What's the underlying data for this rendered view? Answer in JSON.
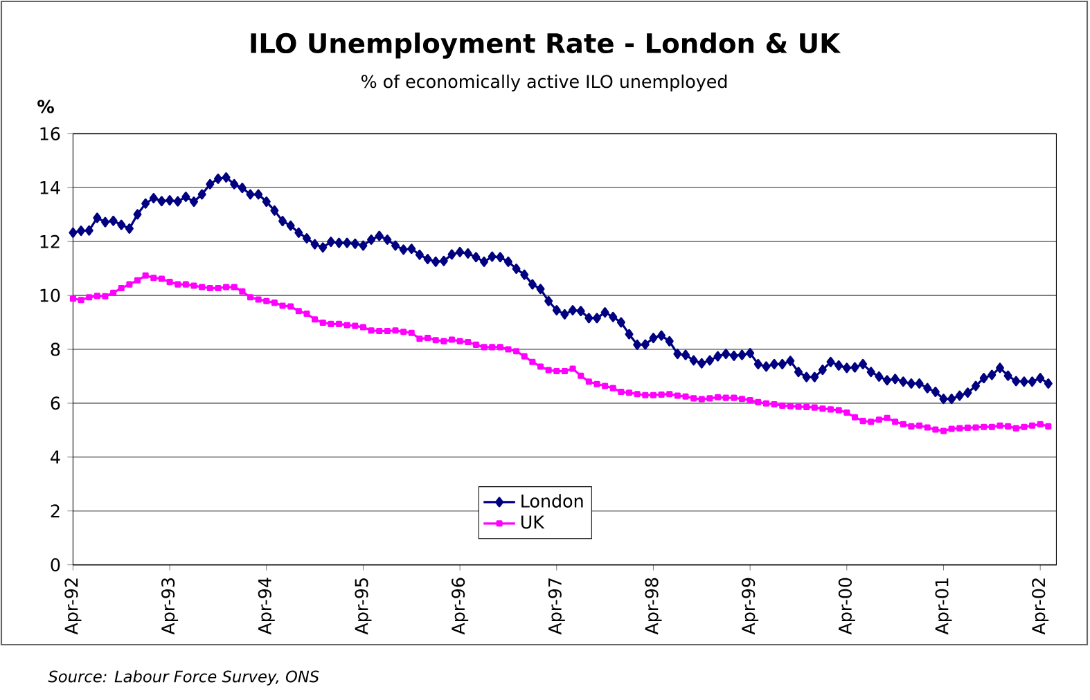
{
  "chart_data": {
    "type": "line",
    "title": "ILO Unemployment Rate - London & UK",
    "subtitle": "% of economically active ILO unemployed",
    "ylabel": "%",
    "annotations": [
      "Source: Labour Force Survey, ONS"
    ],
    "x": [
      "1992-04",
      "1992-05",
      "1992-06",
      "1992-07",
      "1992-08",
      "1992-09",
      "1992-10",
      "1992-11",
      "1992-12",
      "1993-01",
      "1993-02",
      "1993-03",
      "1993-04",
      "1993-05",
      "1993-06",
      "1993-07",
      "1993-08",
      "1993-09",
      "1993-10",
      "1993-11",
      "1993-12",
      "1994-01",
      "1994-02",
      "1994-03",
      "1994-04",
      "1994-05",
      "1994-06",
      "1994-07",
      "1994-08",
      "1994-09",
      "1994-10",
      "1994-11",
      "1994-12",
      "1995-01",
      "1995-02",
      "1995-03",
      "1995-04",
      "1995-05",
      "1995-06",
      "1995-07",
      "1995-08",
      "1995-09",
      "1995-10",
      "1995-11",
      "1995-12",
      "1996-01",
      "1996-02",
      "1996-03",
      "1996-04",
      "1996-05",
      "1996-06",
      "1996-07",
      "1996-08",
      "1996-09",
      "1996-10",
      "1996-11",
      "1996-12",
      "1997-01",
      "1997-02",
      "1997-03",
      "1997-04",
      "1997-05",
      "1997-06",
      "1997-07",
      "1997-08",
      "1997-09",
      "1997-10",
      "1997-11",
      "1997-12",
      "1998-01",
      "1998-02",
      "1998-03",
      "1998-04",
      "1998-05",
      "1998-06",
      "1998-07",
      "1998-08",
      "1998-09",
      "1998-10",
      "1998-11",
      "1998-12",
      "1999-01",
      "1999-02",
      "1999-03",
      "1999-04",
      "1999-05",
      "1999-06",
      "1999-07",
      "1999-08",
      "1999-09",
      "1999-10",
      "1999-11",
      "1999-12",
      "2000-01",
      "2000-02",
      "2000-03",
      "2000-04",
      "2000-05",
      "2000-06",
      "2000-07",
      "2000-08",
      "2000-09",
      "2000-10",
      "2000-11",
      "2000-12",
      "2001-01",
      "2001-02",
      "2001-03",
      "2001-04",
      "2001-05",
      "2001-06",
      "2001-07",
      "2001-08",
      "2001-09",
      "2001-10",
      "2001-11",
      "2001-12",
      "2002-01",
      "2002-02",
      "2002-03",
      "2002-04",
      "2002-05"
    ],
    "series": [
      {
        "name": "London",
        "color": "#000080",
        "marker": "diamond",
        "values": [
          12.33,
          12.4,
          12.41,
          12.88,
          12.72,
          12.77,
          12.62,
          12.48,
          13.01,
          13.41,
          13.61,
          13.5,
          13.53,
          13.49,
          13.66,
          13.48,
          13.75,
          14.13,
          14.33,
          14.38,
          14.13,
          13.99,
          13.75,
          13.75,
          13.48,
          13.15,
          12.76,
          12.59,
          12.33,
          12.12,
          11.9,
          11.78,
          11.99,
          11.95,
          11.95,
          11.92,
          11.85,
          12.07,
          12.21,
          12.07,
          11.85,
          11.7,
          11.73,
          11.51,
          11.35,
          11.25,
          11.28,
          11.52,
          11.61,
          11.56,
          11.42,
          11.25,
          11.44,
          11.42,
          11.25,
          10.99,
          10.77,
          10.41,
          10.24,
          9.79,
          9.45,
          9.3,
          9.45,
          9.42,
          9.16,
          9.16,
          9.37,
          9.2,
          9.0,
          8.56,
          8.17,
          8.18,
          8.42,
          8.51,
          8.3,
          7.83,
          7.79,
          7.59,
          7.48,
          7.59,
          7.74,
          7.83,
          7.76,
          7.79,
          7.86,
          7.45,
          7.36,
          7.45,
          7.45,
          7.57,
          7.16,
          6.97,
          6.97,
          7.24,
          7.53,
          7.4,
          7.31,
          7.33,
          7.45,
          7.16,
          6.99,
          6.85,
          6.9,
          6.8,
          6.73,
          6.73,
          6.56,
          6.42,
          6.16,
          6.16,
          6.28,
          6.39,
          6.64,
          6.93,
          7.05,
          7.31,
          7.02,
          6.82,
          6.8,
          6.8,
          6.93,
          6.73
        ]
      },
      {
        "name": "UK",
        "color": "#ff00ff",
        "marker": "square",
        "values": [
          9.88,
          9.83,
          9.93,
          9.98,
          9.97,
          10.1,
          10.27,
          10.41,
          10.56,
          10.74,
          10.65,
          10.62,
          10.5,
          10.41,
          10.41,
          10.36,
          10.31,
          10.27,
          10.27,
          10.31,
          10.31,
          10.15,
          9.93,
          9.85,
          9.79,
          9.73,
          9.62,
          9.59,
          9.42,
          9.32,
          9.11,
          8.99,
          8.94,
          8.94,
          8.9,
          8.87,
          8.82,
          8.7,
          8.68,
          8.68,
          8.7,
          8.65,
          8.61,
          8.39,
          8.42,
          8.34,
          8.3,
          8.36,
          8.3,
          8.27,
          8.17,
          8.08,
          8.08,
          8.08,
          8.0,
          7.93,
          7.74,
          7.53,
          7.36,
          7.23,
          7.19,
          7.19,
          7.28,
          7.02,
          6.8,
          6.71,
          6.64,
          6.56,
          6.42,
          6.39,
          6.34,
          6.3,
          6.3,
          6.32,
          6.34,
          6.28,
          6.25,
          6.18,
          6.15,
          6.18,
          6.22,
          6.2,
          6.2,
          6.16,
          6.11,
          6.04,
          5.99,
          5.96,
          5.91,
          5.89,
          5.87,
          5.86,
          5.84,
          5.8,
          5.77,
          5.74,
          5.65,
          5.48,
          5.34,
          5.31,
          5.39,
          5.45,
          5.31,
          5.22,
          5.14,
          5.17,
          5.1,
          5.02,
          4.97,
          5.05,
          5.07,
          5.09,
          5.1,
          5.12,
          5.12,
          5.17,
          5.14,
          5.07,
          5.12,
          5.17,
          5.22,
          5.14
        ]
      }
    ],
    "xlim": [
      "1992-04",
      "2002-06"
    ],
    "xticks": [
      {
        "value": "1992-04",
        "label": "Apr-92"
      },
      {
        "value": "1993-04",
        "label": "Apr-93"
      },
      {
        "value": "1994-04",
        "label": "Apr-94"
      },
      {
        "value": "1995-04",
        "label": "Apr-95"
      },
      {
        "value": "1996-04",
        "label": "Apr-96"
      },
      {
        "value": "1997-04",
        "label": "Apr-97"
      },
      {
        "value": "1998-04",
        "label": "Apr-98"
      },
      {
        "value": "1999-04",
        "label": "Apr-99"
      },
      {
        "value": "2000-04",
        "label": "Apr-00"
      },
      {
        "value": "2001-04",
        "label": "Apr-01"
      },
      {
        "value": "2002-04",
        "label": "Apr-02"
      }
    ],
    "ylim": [
      0,
      16
    ],
    "yticks": [
      0,
      2,
      4,
      6,
      8,
      10,
      12,
      14,
      16
    ],
    "grid": "y",
    "legend": "bottom",
    "line_style": "solid"
  }
}
